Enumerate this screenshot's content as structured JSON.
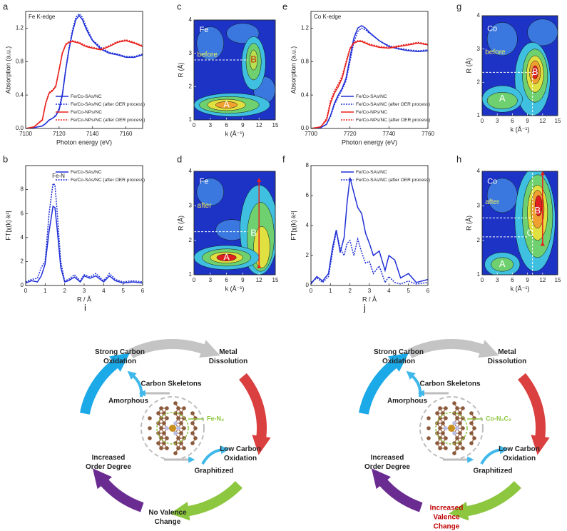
{
  "chart_data": [
    {
      "type": "line",
      "label": "a",
      "annotation": "Fe K-edge",
      "xlabel": "Photon energy (eV)",
      "ylabel": "Absorption (a.u.)",
      "x": [
        7100,
        7105,
        7110,
        7112,
        7114,
        7116,
        7118,
        7120,
        7122,
        7124,
        7126,
        7128,
        7130,
        7132,
        7134,
        7136,
        7138,
        7140,
        7145,
        7150,
        7155,
        7160,
        7165,
        7170
      ],
      "xlim": [
        7100,
        7170
      ],
      "xticks": [
        7100,
        7120,
        7140,
        7160
      ],
      "ylim": [
        0,
        1.4
      ],
      "yticks": [
        {
          "value": 0,
          "label": "0.0"
        },
        0.4,
        0.8,
        1.2
      ],
      "legend": "lower right",
      "series": [
        {
          "name": "Fe/Co-SAs/NC",
          "color": "#1f2fd6",
          "style": "solid",
          "values": [
            0,
            0.01,
            0.03,
            0.06,
            0.1,
            0.12,
            0.15,
            0.22,
            0.4,
            0.7,
            0.95,
            1.15,
            1.3,
            1.35,
            1.3,
            1.2,
            1.12,
            1.05,
            0.95,
            0.9,
            0.88,
            0.85,
            0.85,
            0.88
          ]
        },
        {
          "name": "Fe/Co-SAs/NC (after OER process)",
          "color": "#1f2fd6",
          "style": "dotted",
          "values": [
            0,
            0.01,
            0.03,
            0.06,
            0.1,
            0.12,
            0.16,
            0.24,
            0.42,
            0.72,
            0.97,
            1.18,
            1.33,
            1.37,
            1.33,
            1.23,
            1.14,
            1.06,
            0.97,
            0.91,
            0.89,
            0.86,
            0.86,
            0.89
          ]
        },
        {
          "name": "Fe/Co-NPs/NC",
          "color": "#e8201c",
          "style": "solid",
          "values": [
            0,
            0.02,
            0.1,
            0.3,
            0.42,
            0.45,
            0.5,
            0.7,
            0.9,
            1.0,
            1.03,
            1.04,
            1.03,
            1.02,
            1.0,
            0.98,
            0.97,
            0.96,
            0.94,
            0.98,
            1.03,
            1.05,
            1.02,
            0.98
          ]
        },
        {
          "name": "Fe/Co-NPs/NC (after OER process)",
          "color": "#e8201c",
          "style": "dotted",
          "values": [
            0,
            0.02,
            0.11,
            0.31,
            0.43,
            0.46,
            0.51,
            0.71,
            0.91,
            1.01,
            1.04,
            1.05,
            1.04,
            1.03,
            1.01,
            0.99,
            0.98,
            0.97,
            0.95,
            0.99,
            1.04,
            1.06,
            1.03,
            0.99
          ]
        }
      ]
    },
    {
      "type": "line",
      "label": "b",
      "annotation": "Fe-N",
      "xlabel": "R / Å",
      "ylabel": "FT|χ(k)·k²|",
      "x": [
        0,
        0.3,
        0.6,
        0.8,
        1.0,
        1.2,
        1.4,
        1.5,
        1.6,
        1.8,
        2.0,
        2.2,
        2.5,
        2.8,
        3.0,
        3.3,
        3.6,
        4.0,
        4.3,
        4.6,
        5.0,
        5.5,
        6.0
      ],
      "xlim": [
        0,
        6
      ],
      "xticks": [
        0,
        1,
        2,
        3,
        4,
        5,
        6
      ],
      "ylim": [
        0,
        10
      ],
      "yticks": [
        0,
        2,
        4,
        6,
        8
      ],
      "legend": "upper right",
      "series": [
        {
          "name": "Fe/Co-SAs/NC",
          "color": "#1f2fd6",
          "style": "solid",
          "values": [
            0.2,
            0.4,
            0.3,
            0.8,
            1.8,
            4.5,
            6.6,
            6.5,
            5,
            1.5,
            0.3,
            0.4,
            0.7,
            0.3,
            0.8,
            0.6,
            0.8,
            0.3,
            0.8,
            0.4,
            0.2,
            0.3,
            0.2
          ]
        },
        {
          "name": "Fe/Co-SAs/NC (after OER process)",
          "color": "#1f2fd6",
          "style": "dotted",
          "values": [
            0.3,
            0.5,
            0.6,
            1.5,
            2.0,
            6,
            8.5,
            8.4,
            6.5,
            2,
            0.4,
            0.5,
            0.9,
            0.4,
            0.9,
            0.7,
            1.0,
            0.4,
            1.0,
            0.5,
            0.3,
            0.4,
            0.3
          ]
        }
      ]
    },
    {
      "type": "contour",
      "label": "c",
      "element": "Fe",
      "stage": "before",
      "peaks": [
        "A",
        "B"
      ],
      "xlabel": "k (Å⁻¹)",
      "ylabel": "R (Å)",
      "xlim": [
        0,
        15
      ],
      "xticks": [
        0,
        3,
        6,
        9,
        12,
        15
      ],
      "ylim": [
        1,
        4
      ],
      "yticks": [
        1,
        2,
        3,
        4
      ]
    },
    {
      "type": "contour",
      "label": "d",
      "element": "Fe",
      "stage": "after",
      "peaks": [
        "A",
        "B"
      ],
      "xlabel": "k (Å⁻¹)",
      "ylabel": "R (Å)",
      "xlim": [
        0,
        15
      ],
      "xticks": [
        0,
        3,
        6,
        9,
        12,
        15
      ],
      "ylim": [
        1,
        4
      ],
      "yticks": [
        1,
        2,
        3,
        4
      ]
    },
    {
      "type": "line",
      "label": "e",
      "annotation": "Co K-edge",
      "xlabel": "Photon energy (eV)",
      "ylabel": "Absorption (a.u.)",
      "x": [
        7700,
        7705,
        7708,
        7710,
        7712,
        7714,
        7716,
        7718,
        7720,
        7722,
        7724,
        7726,
        7728,
        7730,
        7735,
        7740,
        7745,
        7750,
        7755,
        7760
      ],
      "xlim": [
        7700,
        7760
      ],
      "xticks": [
        7700,
        7720,
        7740,
        7760
      ],
      "ylim": [
        0,
        1.4
      ],
      "yticks": [
        {
          "value": 0,
          "label": "0.0"
        },
        0.4,
        0.8,
        1.2
      ],
      "legend": "lower right",
      "series": [
        {
          "name": "Fe/Co-SAs/NC",
          "color": "#1f2fd6",
          "style": "solid",
          "values": [
            0,
            0.01,
            0.05,
            0.15,
            0.3,
            0.4,
            0.48,
            0.6,
            0.85,
            1.08,
            1.2,
            1.23,
            1.2,
            1.15,
            1.05,
            0.98,
            0.95,
            0.93,
            0.92,
            0.93
          ]
        },
        {
          "name": "Fe/Co-SAs/NC (after OER process)",
          "color": "#1f2fd6",
          "style": "dotted",
          "values": [
            0,
            0.01,
            0.05,
            0.14,
            0.28,
            0.38,
            0.46,
            0.57,
            0.8,
            1.03,
            1.16,
            1.2,
            1.18,
            1.14,
            1.05,
            0.99,
            0.96,
            0.94,
            0.93,
            0.94
          ]
        },
        {
          "name": "Fe/Co-NPs/NC",
          "color": "#e8201c",
          "style": "solid",
          "values": [
            0,
            0.02,
            0.1,
            0.3,
            0.42,
            0.5,
            0.6,
            0.78,
            0.95,
            1.02,
            1.04,
            1.04,
            1.02,
            1.0,
            0.97,
            0.96,
            0.98,
            1.0,
            1.02,
            1.0
          ]
        },
        {
          "name": "Fe/Co-NPs/NC (after OER process)",
          "color": "#e8201c",
          "style": "dotted",
          "values": [
            0,
            0.02,
            0.12,
            0.33,
            0.45,
            0.53,
            0.63,
            0.8,
            0.96,
            1.03,
            1.05,
            1.05,
            1.03,
            1.01,
            0.98,
            0.97,
            0.99,
            1.01,
            1.03,
            1.01
          ]
        }
      ]
    },
    {
      "type": "line",
      "label": "f",
      "xlabel": "R / Å",
      "ylabel": "FT|χ(k)·k²|",
      "x": [
        0,
        0.3,
        0.6,
        0.9,
        1.1,
        1.3,
        1.5,
        1.7,
        1.85,
        2.0,
        2.2,
        2.4,
        2.6,
        2.8,
        3.0,
        3.2,
        3.5,
        3.8,
        4.0,
        4.3,
        4.6,
        5.0,
        5.4,
        6.0
      ],
      "xlim": [
        0,
        6
      ],
      "xticks": [
        0,
        1,
        2,
        3,
        4,
        5,
        6
      ],
      "ylim": [
        0,
        8
      ],
      "yticks": [
        0,
        2,
        4,
        6,
        8
      ],
      "legend": "upper right",
      "series": [
        {
          "name": "Fe/Co-SAs/NC",
          "color": "#1f2fd6",
          "style": "solid",
          "values": [
            0.1,
            0.6,
            0.3,
            0.8,
            2.5,
            3.7,
            2.2,
            3.2,
            5.5,
            7.2,
            6.2,
            5.2,
            4.8,
            3.5,
            2.8,
            2.0,
            2.3,
            1.0,
            2.0,
            1.7,
            0.5,
            0.8,
            0.2,
            0.4
          ]
        },
        {
          "name": "Fe/Co-SAs/NC (after OER process)",
          "color": "#1f2fd6",
          "style": "dotted",
          "values": [
            0.2,
            0.5,
            0.2,
            0.6,
            2.2,
            3.6,
            2.5,
            2.0,
            2.8,
            3.0,
            2.0,
            3.1,
            2.2,
            1.5,
            1.6,
            0.8,
            1.3,
            0.2,
            0.6,
            0.2,
            0.1,
            0.3,
            0.1,
            0.2
          ]
        }
      ]
    },
    {
      "type": "contour",
      "label": "g",
      "element": "Co",
      "stage": "before",
      "peaks": [
        "A",
        "B"
      ],
      "xlabel": "k (Å⁻¹)",
      "ylabel": "R (Å)",
      "xlim": [
        0,
        15
      ],
      "xticks": [
        0,
        3,
        6,
        9,
        12,
        15
      ],
      "ylim": [
        1,
        4
      ],
      "yticks": [
        1,
        2,
        3,
        4
      ]
    },
    {
      "type": "contour",
      "label": "h",
      "element": "Co",
      "stage": "after",
      "peaks": [
        "A",
        "B",
        "C"
      ],
      "xlabel": "k (Å⁻¹)",
      "ylabel": "R (Å)",
      "xlim": [
        0,
        15
      ],
      "xticks": [
        0,
        3,
        6,
        9,
        12,
        15
      ],
      "ylim": [
        1,
        4
      ],
      "yticks": [
        1,
        2,
        3,
        4
      ]
    }
  ],
  "diagrams": [
    {
      "label": "i",
      "site": "Fe-N₄",
      "nodes": [
        {
          "lines": [
            "Strong Carbon",
            "Oxidation"
          ]
        },
        {
          "lines": [
            "Metal",
            "Dissolution"
          ]
        },
        {
          "lines": [
            "Carbon Skeletons"
          ]
        },
        {
          "lines": [
            "Amorphous"
          ]
        },
        {
          "lines": [
            "Low Carbon",
            "Oxidation"
          ]
        },
        {
          "lines": [
            "Graphitized"
          ]
        },
        {
          "lines": [
            "Increased",
            "Order Degree"
          ]
        },
        {
          "lines": [
            "No Valence",
            "Change"
          ],
          "color": "#222222"
        }
      ]
    },
    {
      "label": "j",
      "site": "Co-N₂C₂",
      "nodes": [
        {
          "lines": [
            "Strong Carbon",
            "Oxidation"
          ]
        },
        {
          "lines": [
            "Metal",
            "Dissolution"
          ]
        },
        {
          "lines": [
            "Carbon Skeletons"
          ]
        },
        {
          "lines": [
            "Amorphous"
          ]
        },
        {
          "lines": [
            "Low Carbon",
            "Oxidation"
          ]
        },
        {
          "lines": [
            "Graphitized"
          ]
        },
        {
          "lines": [
            "Increased",
            "Order Degree"
          ]
        },
        {
          "lines": [
            "Increased",
            "Valence",
            "Change"
          ],
          "color": "#c00000"
        }
      ]
    }
  ]
}
